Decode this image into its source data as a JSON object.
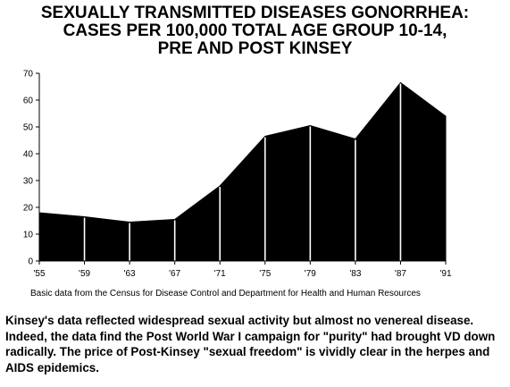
{
  "title_lines": [
    "SEXUALLY TRANSMITTED DISEASES GONORRHEA:",
    "CASES PER 100,000 TOTAL AGE GROUP 10-14,",
    "PRE AND POST KINSEY"
  ],
  "source_note": "Basic data from the Census for Disease Control and Department for Health and Human Resources",
  "caption": "Kinsey's data reflected widespread sexual activity but almost no venereal disease.  Indeed, the data find the Post World War I campaign for \"purity\" had brought VD down radically.  The price of Post-Kinsey \"sexual freedom\" is vividly clear in the herpes and AIDS epidemics.",
  "chart_data": {
    "type": "area",
    "title": "SEXUALLY TRANSMITTED DISEASES GONORRHEA: CASES PER 100,000 TOTAL AGE GROUP 10-14, PRE AND POST KINSEY",
    "categories": [
      "'55",
      "'59",
      "'63",
      "'67",
      "'71",
      "'75",
      "'79",
      "'83",
      "'87",
      "'91"
    ],
    "values": [
      18,
      16.5,
      14.5,
      15.5,
      28,
      46.5,
      50.5,
      45.5,
      66.5,
      54
    ],
    "y_ticks": [
      0,
      10,
      20,
      30,
      40,
      50,
      60,
      70
    ],
    "ylim": [
      0,
      70
    ],
    "xlabel": "",
    "ylabel": "",
    "grid": false,
    "legend": "none",
    "fill_color": "#000000",
    "separator_color": "#ffffff"
  }
}
